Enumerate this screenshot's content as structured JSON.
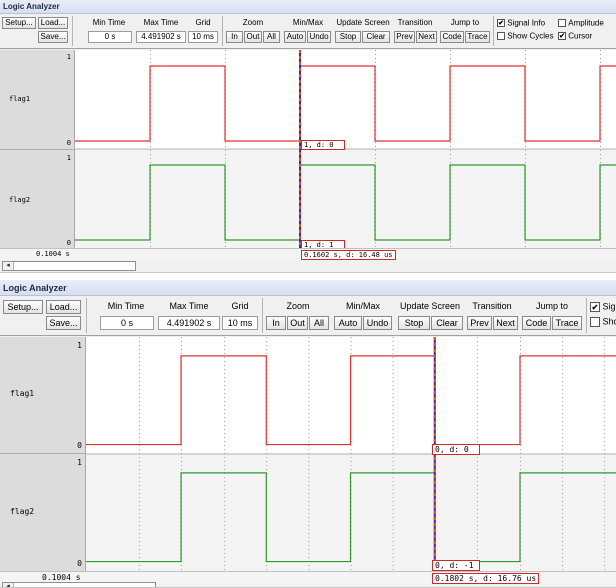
{
  "colors": {
    "signal_flag1": "#e03030",
    "signal_flag2": "#2e9a2e",
    "cursor_line": "#2a2ad0",
    "cursor_dash": "#e05020",
    "cursor_box_border": "#d02828",
    "row_alt_bg": "#f4f4f4"
  },
  "icons": {
    "checkbox_checked": "✔",
    "scroll_left": "◂"
  },
  "panels": [
    {
      "title": "Logic Analyzer",
      "toolbar": {
        "setup_label": "Setup...",
        "load_label": "Load...",
        "save_label": "Save...",
        "min_time_header": "Min Time",
        "min_time_value": "0 s",
        "max_time_header": "Max Time",
        "max_time_value": "4.491902 s",
        "grid_header": "Grid",
        "grid_value": "10 ms",
        "zoom_header": "Zoom",
        "zoom_in_label": "In",
        "zoom_out_label": "Out",
        "zoom_all_label": "All",
        "minmax_header": "Min/Max",
        "auto_label": "Auto",
        "undo_label": "Undo",
        "update_header": "Update Screen",
        "stop_label": "Stop",
        "clear_label": "Clear",
        "transition_header": "Transition",
        "prev_label": "Prev",
        "next_label": "Next",
        "jump_header": "Jump to",
        "code_label": "Code",
        "trace_label": "Trace",
        "signal_info_label": "Signal Info",
        "signal_info_checked": true,
        "show_cycles_label": "Show Cycles",
        "show_cycles_checked": false,
        "amplitude_label": "Amplitude",
        "amplitude_checked": false,
        "cursor_label": "Cursor",
        "cursor_checked": true
      },
      "signals": [
        {
          "name": "flag1",
          "scale_max": "1",
          "scale_min": "0",
          "cursor_readout": "1,  d: 0"
        },
        {
          "name": "flag2",
          "scale_max": "1",
          "scale_min": "0",
          "cursor_readout": "1,  d: 1"
        }
      ],
      "time_left": "0.1004 s",
      "cursor_time": "0.1602 s,   d: 16.48 us",
      "waveforms": {
        "flag1_high_intervals": [
          [
            150,
            225
          ],
          [
            300,
            375
          ],
          [
            450,
            525
          ],
          [
            600,
            640
          ]
        ],
        "flag2_high_intervals": [
          [
            150,
            225
          ],
          [
            300,
            375
          ],
          [
            450,
            525
          ],
          [
            600,
            640
          ]
        ],
        "grid_lines": [
          150,
          225,
          300,
          375,
          450,
          525,
          600
        ],
        "cursor_x": 300
      }
    },
    {
      "title": "Logic Analyzer",
      "toolbar": {
        "setup_label": "Setup...",
        "load_label": "Load...",
        "save_label": "Save...",
        "min_time_header": "Min Time",
        "min_time_value": "0 s",
        "max_time_header": "Max Time",
        "max_time_value": "4.491902 s",
        "grid_header": "Grid",
        "grid_value": "10 ms",
        "zoom_header": "Zoom",
        "zoom_in_label": "In",
        "zoom_out_label": "Out",
        "zoom_all_label": "All",
        "minmax_header": "Min/Max",
        "auto_label": "Auto",
        "undo_label": "Undo",
        "update_header": "Update Screen",
        "stop_label": "Stop",
        "clear_label": "Clear",
        "transition_header": "Transition",
        "prev_label": "Prev",
        "next_label": "Next",
        "jump_header": "Jump to",
        "code_label": "Code",
        "trace_label": "Trace",
        "signal_info_label": "Signa",
        "signal_info_checked": true,
        "show_cycles_label": "Show",
        "show_cycles_checked": false
      },
      "signals": [
        {
          "name": "flag1",
          "scale_max": "1",
          "scale_min": "0",
          "cursor_readout": "0,   d: 0"
        },
        {
          "name": "flag2",
          "scale_max": "1",
          "scale_min": "0",
          "cursor_readout": "0,   d: -1"
        }
      ],
      "time_left": "0.1004 s",
      "cursor_time": "0.1802 s,   d: 16.76 us",
      "waveforms": {
        "flag1_high_intervals": [
          [
            172,
            259
          ],
          [
            345,
            431
          ],
          [
            518,
            640
          ]
        ],
        "flag2_high_intervals": [
          [
            172,
            259
          ],
          [
            345,
            431
          ],
          [
            518,
            640
          ]
        ],
        "grid_lines": [
          129,
          172,
          216,
          259,
          302,
          345,
          388,
          431,
          474,
          518,
          561,
          604
        ],
        "cursor_x": 431
      }
    }
  ]
}
